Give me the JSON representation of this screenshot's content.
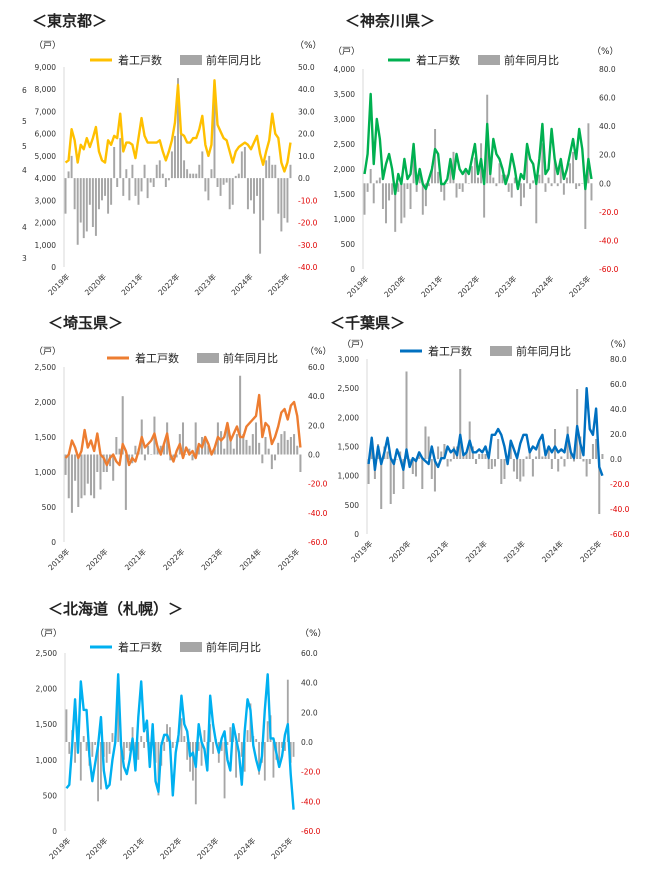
{
  "common": {
    "unit_left": "（戸）",
    "unit_right": "（%）",
    "legend_line": "着工戸数",
    "legend_bar": "前年同月比",
    "bar_color": "#a6a6a6",
    "neg_color": "#e00000"
  },
  "chart_data": [
    {
      "title": "＜東京都＞",
      "type": "bar+line",
      "line_color": "#ffc000",
      "ylim_left": [
        0,
        9000
      ],
      "yticks_left": [
        "0",
        "1,000",
        "2,000",
        "3,000",
        "4,000",
        "5,000",
        "6,000",
        "7,000",
        "8,000",
        "9,000"
      ],
      "ylim_right": [
        -40,
        50
      ],
      "yticks_right": [
        "-40.0",
        "-30.0",
        "-20.0",
        "-10.0",
        "0.0",
        "10.0",
        "20.0",
        "30.0",
        "40.0",
        "50.0"
      ],
      "stray_labels": [
        "3",
        "4",
        "4",
        "5",
        "5",
        "6"
      ],
      "xticks": [
        "2019年",
        "2020年",
        "2021年",
        "2022年",
        "2023年",
        "2024年",
        "2025年"
      ],
      "series": [
        {
          "name": "着工戸数",
          "kind": "line",
          "values": [
            4700,
            4800,
            6200,
            5700,
            4700,
            5500,
            5300,
            5800,
            5400,
            5800,
            6300,
            5200,
            4800,
            4700,
            5700,
            5500,
            5900,
            5800,
            6900,
            5200,
            5600,
            5600,
            5500,
            4900,
            5800,
            6700,
            5900,
            5600,
            5600,
            5600,
            5600,
            5700,
            5200,
            4800,
            5200,
            5700,
            6500,
            8200,
            6000,
            5900,
            5600,
            5600,
            5800,
            5800,
            6200,
            6800,
            5500,
            5000,
            5500,
            8400,
            6400,
            6100,
            5800,
            5700,
            5200,
            4700,
            5200,
            5400,
            5500,
            5600,
            5500,
            5300,
            5600,
            5900,
            5100,
            4600,
            5200,
            5700,
            6900,
            6000,
            5800,
            4700,
            4300,
            4700,
            5600
          ]
        },
        {
          "name": "前年同月比",
          "kind": "bar",
          "values": [
            -16,
            3,
            10,
            -14,
            -30,
            -20,
            -27,
            -24,
            -12,
            -22,
            -26,
            -14,
            -10,
            -8,
            -16,
            -12,
            14,
            -4,
            18,
            -8,
            4,
            -10,
            6,
            -8,
            -12,
            -6,
            6,
            -9,
            -2,
            -4,
            6,
            8,
            2,
            -4,
            -1,
            12,
            19,
            45,
            20,
            8,
            4,
            2,
            2,
            2,
            6,
            12,
            -6,
            -10,
            4,
            42,
            -4,
            -8,
            -3,
            -2,
            -14,
            -12,
            1,
            2,
            12,
            14,
            -14,
            -10,
            -16,
            -8,
            -34,
            -19,
            8,
            10,
            6,
            6,
            -16,
            -24,
            -18,
            -20,
            6
          ]
        }
      ]
    },
    {
      "title": "＜神奈川県＞",
      "type": "bar+line",
      "line_color": "#00b050",
      "ylim_left": [
        0,
        4000
      ],
      "yticks_left": [
        "0",
        "500",
        "1,000",
        "1,500",
        "2,000",
        "2,500",
        "3,000",
        "3,500",
        "4,000"
      ],
      "ylim_right": [
        -60,
        80
      ],
      "yticks_right": [
        "-60.0",
        "-40.0",
        "-20.0",
        "0.0",
        "20.0",
        "40.0",
        "60.0",
        "80.0"
      ],
      "xticks": [
        "2019年",
        "2020年",
        "2021年",
        "2022年",
        "2023年",
        "2024年",
        "2025年"
      ],
      "series": [
        {
          "name": "着工戸数",
          "kind": "line",
          "values": [
            1900,
            2300,
            3500,
            2100,
            3000,
            2600,
            1800,
            2100,
            2300,
            2000,
            1500,
            1900,
            1700,
            2200,
            1800,
            1900,
            2500,
            1700,
            2000,
            1700,
            1600,
            1800,
            2000,
            2400,
            2300,
            1700,
            1700,
            1800,
            2200,
            1800,
            2300,
            2000,
            1900,
            2000,
            1900,
            2200,
            2500,
            1900,
            2200,
            1700,
            2900,
            1900,
            2600,
            2300,
            2200,
            2000,
            1700,
            1900,
            2300,
            2000,
            1600,
            1900,
            1800,
            2500,
            2200,
            2100,
            1700,
            2200,
            2900,
            1900,
            2000,
            2800,
            2200,
            1900,
            2200,
            1800,
            2000,
            2300,
            2600,
            2200,
            2800,
            2400,
            1600,
            2200,
            1800
          ]
        },
        {
          "name": "前年同月比",
          "kind": "bar",
          "values": [
            -22,
            -6,
            10,
            -14,
            2,
            4,
            -18,
            -28,
            -12,
            -8,
            -34,
            -6,
            -28,
            -24,
            -4,
            -18,
            28,
            -6,
            10,
            -22,
            -16,
            -2,
            12,
            38,
            8,
            -6,
            -12,
            0,
            12,
            22,
            -10,
            -4,
            -6,
            10,
            0,
            12,
            18,
            4,
            28,
            -24,
            62,
            8,
            4,
            -2,
            14,
            6,
            6,
            -6,
            -10,
            4,
            2,
            -16,
            -10,
            22,
            -4,
            2,
            -28,
            6,
            28,
            -6,
            4,
            -2,
            16,
            -2,
            12,
            -8,
            4,
            14,
            22,
            -4,
            -2,
            0,
            -32,
            42,
            -12
          ]
        }
      ]
    },
    {
      "title": "＜埼玉県＞",
      "type": "bar+line",
      "line_color": "#ed7d31",
      "ylim_left": [
        0,
        2500
      ],
      "yticks_left": [
        "0",
        "500",
        "1,000",
        "1,500",
        "2,000",
        "2,500"
      ],
      "ylim_right": [
        -60,
        60
      ],
      "yticks_right": [
        "-60.0",
        "-40.0",
        "-20.0",
        "0.0",
        "20.0",
        "40.0",
        "60.0"
      ],
      "xticks": [
        "2019年",
        "2020年",
        "2021年",
        "2022年",
        "2023年",
        "2024年",
        "2025年"
      ],
      "series": [
        {
          "name": "着工戸数",
          "kind": "line",
          "values": [
            1200,
            1250,
            1450,
            1350,
            1200,
            1300,
            1600,
            1350,
            1450,
            1300,
            1550,
            1250,
            1200,
            1100,
            1200,
            1250,
            1150,
            1100,
            1400,
            1300,
            1100,
            1200,
            1150,
            1300,
            1500,
            1350,
            1400,
            1450,
            1550,
            1350,
            1250,
            1400,
            1550,
            1250,
            1150,
            1300,
            1400,
            1200,
            1350,
            1250,
            1300,
            1200,
            1400,
            1350,
            1500,
            1400,
            1250,
            1350,
            1500,
            1450,
            1500,
            1700,
            1450,
            1550,
            1650,
            1500,
            1500,
            1650,
            1700,
            1750,
            1800,
            2100,
            1500,
            1700,
            1650,
            1400,
            1500,
            1650,
            1850,
            1900,
            1750,
            1950,
            2000,
            1800,
            1350
          ]
        },
        {
          "name": "前年同月比",
          "kind": "bar",
          "values": [
            -14,
            -30,
            -40,
            -18,
            -36,
            -30,
            -28,
            -20,
            -28,
            -30,
            -12,
            -24,
            -12,
            -12,
            -8,
            -18,
            12,
            4,
            40,
            -38,
            -4,
            -6,
            6,
            4,
            24,
            -4,
            6,
            0,
            26,
            6,
            6,
            8,
            22,
            -4,
            -2,
            -2,
            14,
            22,
            0,
            4,
            -4,
            22,
            6,
            12,
            12,
            6,
            0,
            4,
            22,
            16,
            4,
            20,
            10,
            4,
            14,
            54,
            14,
            10,
            6,
            14,
            22,
            8,
            -6,
            12,
            4,
            -10,
            -4,
            8,
            14,
            16,
            10,
            12,
            14,
            6,
            -12
          ]
        }
      ]
    },
    {
      "title": "＜千葉県＞",
      "type": "bar+line",
      "line_color": "#0070c0",
      "ylim_left": [
        0,
        3000
      ],
      "yticks_left": [
        "0",
        "500",
        "1,000",
        "1,500",
        "2,000",
        "2,500",
        "3,000"
      ],
      "ylim_right": [
        -60,
        80
      ],
      "yticks_right": [
        "-60.0",
        "-40.0",
        "-20.0",
        "0.0",
        "20.0",
        "40.0",
        "60.0",
        "80.0"
      ],
      "xticks": [
        "2019年",
        "2020年",
        "2021年",
        "2022年",
        "2023年",
        "2024年",
        "2025年"
      ],
      "series": [
        {
          "name": "着工戸数",
          "kind": "line",
          "values": [
            1200,
            1650,
            1100,
            1500,
            1200,
            1400,
            1650,
            1300,
            1200,
            1450,
            1300,
            1100,
            1450,
            1150,
            1300,
            1250,
            1400,
            1300,
            1250,
            1200,
            1500,
            1250,
            1150,
            1300,
            1300,
            1500,
            1400,
            1450,
            1350,
            1700,
            1350,
            1400,
            1600,
            1400,
            1400,
            1450,
            1400,
            1500,
            1300,
            1700,
            1700,
            1800,
            1700,
            1500,
            1200,
            1600,
            1450,
            1300,
            1550,
            1700,
            1700,
            1400,
            1500,
            1450,
            1600,
            1700,
            1350,
            1500,
            1400,
            1500,
            1400,
            1450,
            1400,
            1700,
            1400,
            1300,
            1850,
            1550,
            1350,
            2500,
            1800,
            1700,
            2150,
            1150,
            1000
          ]
        },
        {
          "name": "前年同月比",
          "kind": "bar",
          "values": [
            -20,
            8,
            -16,
            12,
            -40,
            10,
            6,
            -36,
            -28,
            0,
            6,
            -24,
            70,
            -6,
            -12,
            -14,
            6,
            -24,
            26,
            18,
            -16,
            -26,
            10,
            6,
            12,
            -6,
            -2,
            10,
            10,
            72,
            4,
            6,
            30,
            10,
            -4,
            4,
            4,
            4,
            -8,
            -8,
            -6,
            16,
            -20,
            -16,
            0,
            14,
            -10,
            -16,
            -18,
            -14,
            2,
            8,
            -14,
            2,
            14,
            2,
            2,
            8,
            -8,
            24,
            -10,
            2,
            -6,
            26,
            6,
            -2,
            56,
            18,
            -2,
            -14,
            -4,
            12,
            16,
            -44,
            4
          ]
        }
      ]
    },
    {
      "title": "＜北海道（札幌）＞",
      "type": "bar+line",
      "line_color": "#00b0f0",
      "ylim_left": [
        0,
        2500
      ],
      "yticks_left": [
        "0",
        "500",
        "1,000",
        "1,500",
        "2,000",
        "2,500"
      ],
      "ylim_right": [
        -60,
        60
      ],
      "yticks_right": [
        "-60.0",
        "-40.0",
        "-20.0",
        "0.0",
        "20.0",
        "40.0",
        "60.0"
      ],
      "xticks": [
        "2019年",
        "2020年",
        "2021年",
        "2022年",
        "2023年",
        "2024年",
        "2025年"
      ],
      "series": [
        {
          "name": "着工戸数",
          "kind": "line",
          "values": [
            600,
            650,
            1200,
            1850,
            1100,
            2100,
            1700,
            1700,
            1050,
            700,
            950,
            1200,
            1600,
            850,
            600,
            650,
            1000,
            1250,
            2200,
            1200,
            900,
            800,
            1000,
            1300,
            850,
            1600,
            2100,
            1400,
            1550,
            900,
            1500,
            700,
            550,
            1200,
            1350,
            1350,
            1250,
            500,
            1100,
            1350,
            1900,
            1500,
            1400,
            1050,
            1100,
            900,
            1500,
            1250,
            1150,
            850,
            1900,
            1500,
            1250,
            1100,
            1300,
            1400,
            1000,
            850,
            1500,
            1300,
            1100,
            650,
            1400,
            1850,
            1700,
            1200,
            1000,
            850,
            1050,
            1700,
            2200,
            1300,
            1300,
            1100,
            900,
            1050,
            1350,
            1500,
            800,
            300
          ]
        },
        {
          "name": "前年同月比",
          "kind": "bar",
          "values": [
            22,
            -8,
            8,
            -14,
            -4,
            -26,
            4,
            -6,
            -16,
            -10,
            -2,
            -40,
            -32,
            -10,
            -14,
            -8,
            6,
            4,
            28,
            -26,
            -12,
            -4,
            -6,
            10,
            -8,
            -12,
            4,
            -4,
            8,
            -8,
            -2,
            -14,
            -36,
            -16,
            -6,
            12,
            10,
            -4,
            0,
            4,
            16,
            4,
            -12,
            -20,
            -26,
            -42,
            -6,
            -16,
            8,
            -10,
            12,
            -8,
            2,
            -14,
            -6,
            -38,
            -2,
            10,
            8,
            -24,
            6,
            -10,
            -20,
            8,
            26,
            4,
            2,
            -22,
            -14,
            -26,
            14,
            18,
            -24,
            -12,
            -16,
            -4,
            -6,
            42,
            -14,
            -10
          ]
        }
      ]
    }
  ]
}
